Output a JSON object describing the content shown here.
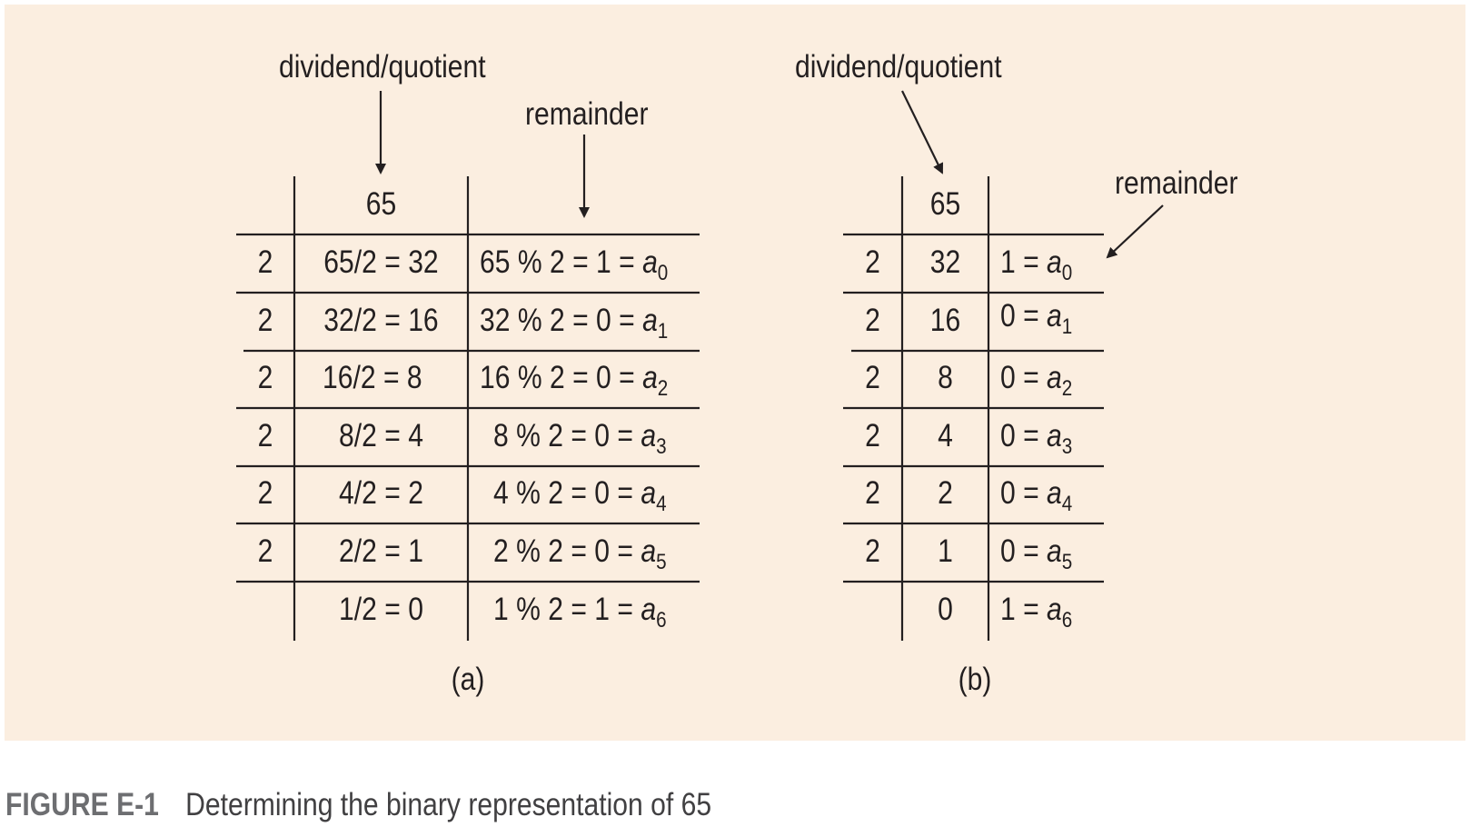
{
  "labels": {
    "dividend_quotient": "dividend/quotient",
    "remainder": "remainder"
  },
  "table_a": {
    "header": "65",
    "rows": [
      {
        "divisor": "2",
        "div": "65/2 = 32",
        "rem": "65 % 2 = 1 = ",
        "var": "a",
        "sub": "0"
      },
      {
        "divisor": "2",
        "div": "32/2 = 16",
        "rem": "32 % 2 = 0 = ",
        "var": "a",
        "sub": "1"
      },
      {
        "divisor": "2",
        "div": "16/2 = 8",
        "rem": "16 % 2 = 0 = ",
        "var": "a",
        "sub": "2"
      },
      {
        "divisor": "2",
        "div": "8/2 = 4",
        "rem": "8 % 2 = 0 = ",
        "var": "a",
        "sub": "3"
      },
      {
        "divisor": "2",
        "div": "4/2 = 2",
        "rem": "4 % 2 = 0 = ",
        "var": "a",
        "sub": "4"
      },
      {
        "divisor": "2",
        "div": "2/2 = 1",
        "rem": "2 % 2 = 0 = ",
        "var": "a",
        "sub": "5"
      },
      {
        "divisor": "",
        "div": "1/2 = 0",
        "rem": "1 % 2 = 1 = ",
        "var": "a",
        "sub": "6"
      }
    ],
    "label": "(a)"
  },
  "table_b": {
    "header": "65",
    "rows": [
      {
        "divisor": "2",
        "quot": "32",
        "rem": "1 = ",
        "var": "a",
        "sub": "0"
      },
      {
        "divisor": "2",
        "quot": "16",
        "rem": "0 = ",
        "var": "a",
        "sub": "1"
      },
      {
        "divisor": "2",
        "quot": "8",
        "rem": "0 = ",
        "var": "a",
        "sub": "2"
      },
      {
        "divisor": "2",
        "quot": "4",
        "rem": "0 = ",
        "var": "a",
        "sub": "3"
      },
      {
        "divisor": "2",
        "quot": "2",
        "rem": "0 = ",
        "var": "a",
        "sub": "4"
      },
      {
        "divisor": "2",
        "quot": "1",
        "rem": "0 = ",
        "var": "a",
        "sub": "5"
      },
      {
        "divisor": "",
        "quot": "0",
        "rem": "1 = ",
        "var": "a",
        "sub": "6"
      }
    ],
    "label": "(b)"
  },
  "caption": {
    "figure": "FIGURE E-1",
    "text": "Determining the binary representation of 65"
  },
  "colors": {
    "background": "#fbeee0",
    "ink": "#231f20",
    "figure_label": "#6d6e71"
  }
}
